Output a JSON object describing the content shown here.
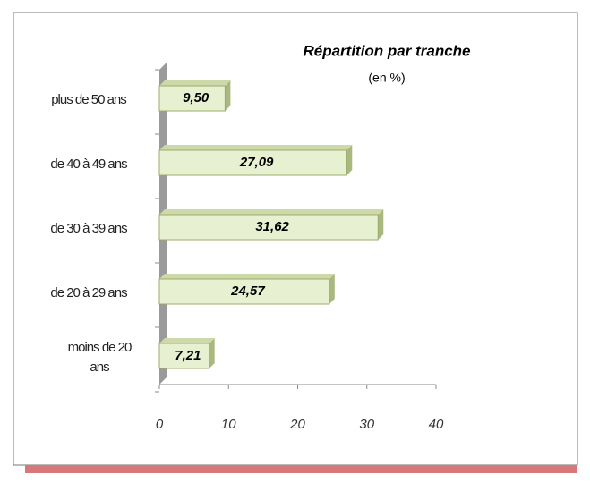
{
  "chart_data": {
    "type": "bar",
    "orientation": "horizontal",
    "title": "Répartition par tranche",
    "subtitle": "(en %)",
    "categories": [
      "plus de 50 ans",
      "de 40 à 49 ans",
      "de 30 à 39 ans",
      "de 20 à 29 ans",
      "moins de 20 ans"
    ],
    "values": [
      9.5,
      27.09,
      31.62,
      24.57,
      7.21
    ],
    "value_labels": [
      "9,50",
      "27,09",
      "31,62",
      "24,57",
      "7,21"
    ],
    "color": "#e8f0d2",
    "xlim": [
      0,
      40
    ],
    "xticks": [
      0,
      10,
      20,
      30,
      40
    ],
    "grid": false
  }
}
